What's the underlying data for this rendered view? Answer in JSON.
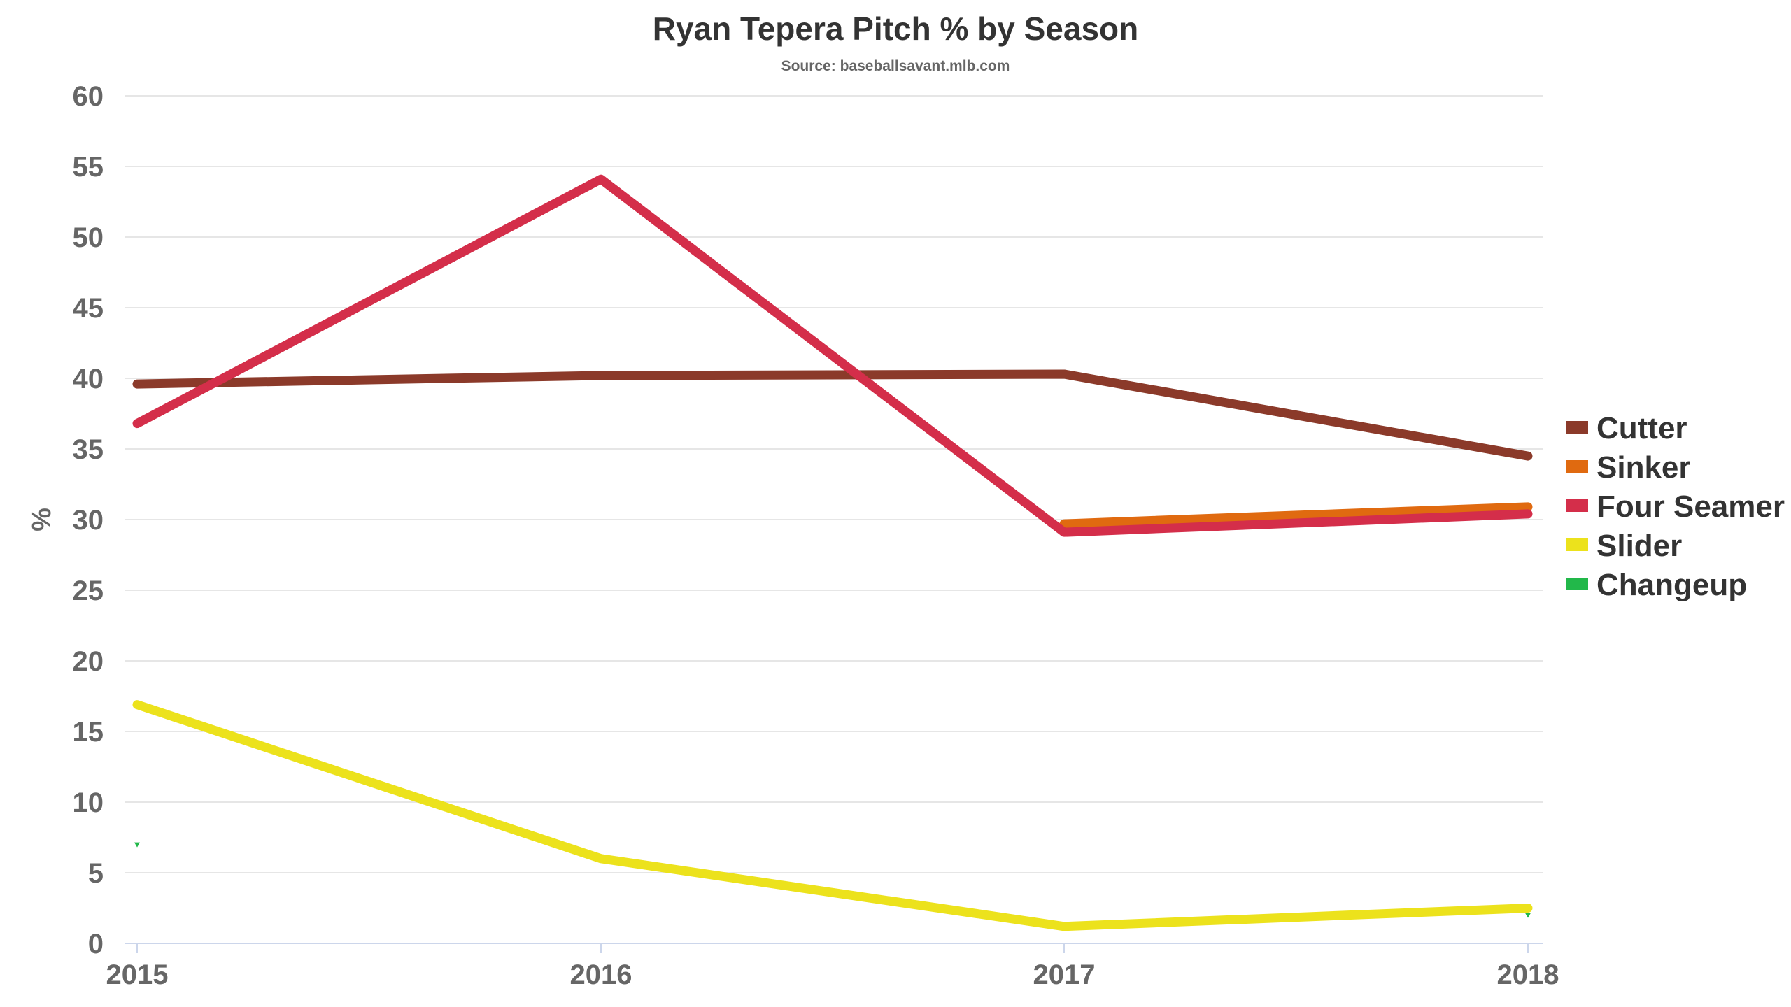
{
  "chart_data": {
    "type": "line",
    "title": "Ryan Tepera Pitch % by Season",
    "subtitle": "Source: baseballsavant.mlb.com",
    "xlabel": "",
    "ylabel": "%",
    "x": [
      "2015",
      "2016",
      "2017",
      "2018"
    ],
    "ylim": [
      0,
      60
    ],
    "yticks": [
      0,
      5,
      10,
      15,
      20,
      25,
      30,
      35,
      40,
      45,
      50,
      55,
      60
    ],
    "grid": true,
    "legend": "right",
    "series": [
      {
        "name": "Cutter",
        "color": "#8b3a2a",
        "values": [
          39.6,
          40.2,
          40.3,
          34.5
        ]
      },
      {
        "name": "Sinker",
        "color": "#e06a10",
        "values": [
          null,
          null,
          29.7,
          30.9
        ]
      },
      {
        "name": "Four Seamer",
        "color": "#d42e4a",
        "values": [
          36.8,
          54.1,
          29.1,
          30.4
        ]
      },
      {
        "name": "Slider",
        "color": "#ece21c",
        "values": [
          16.9,
          6.0,
          1.2,
          2.5
        ]
      },
      {
        "name": "Changeup",
        "color": "#22b84a",
        "values": [
          7.0,
          null,
          null,
          2.0
        ]
      }
    ]
  }
}
